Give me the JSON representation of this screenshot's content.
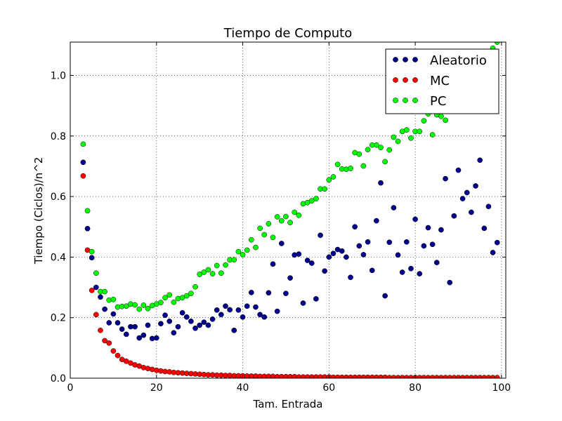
{
  "chart_data": {
    "type": "scatter",
    "title": "Tiempo de Computo",
    "xlabel": "Tam. Entrada",
    "ylabel": "Tiempo (Ciclos)/n^2",
    "xlim": [
      0,
      101
    ],
    "ylim": [
      0,
      1.11
    ],
    "xticks": [
      0,
      20,
      40,
      60,
      80,
      100
    ],
    "xtick_labels": [
      "0",
      "20",
      "40",
      "60",
      "80",
      "100"
    ],
    "yticks": [
      0.0,
      0.2,
      0.4,
      0.6,
      0.8,
      1.0
    ],
    "ytick_labels": [
      "0.0",
      "0.2",
      "0.4",
      "0.6",
      "0.8",
      "1.0"
    ],
    "grid": true,
    "legend_position": "top-right",
    "series": [
      {
        "name": "Aleatorio",
        "color": "#00008b",
        "x": [
          3,
          4,
          5,
          6,
          7,
          8,
          9,
          10,
          11,
          12,
          13,
          14,
          15,
          16,
          17,
          18,
          19,
          20,
          21,
          22,
          23,
          24,
          25,
          26,
          27,
          28,
          29,
          30,
          31,
          32,
          33,
          34,
          35,
          36,
          37,
          38,
          39,
          40,
          41,
          42,
          43,
          44,
          45,
          46,
          47,
          48,
          49,
          50,
          51,
          52,
          53,
          54,
          55,
          56,
          57,
          58,
          59,
          60,
          61,
          62,
          63,
          64,
          65,
          66,
          67,
          68,
          69,
          70,
          71,
          72,
          73,
          74,
          75,
          76,
          77,
          78,
          79,
          80,
          81,
          82,
          83,
          84,
          85,
          86,
          87,
          88,
          89,
          90,
          91,
          92,
          93,
          94,
          95,
          96,
          97,
          98,
          99
        ],
        "y": [
          0.713,
          0.494,
          0.398,
          0.3,
          0.268,
          0.228,
          0.183,
          0.212,
          0.183,
          0.162,
          0.145,
          0.17,
          0.17,
          0.133,
          0.142,
          0.175,
          0.131,
          0.133,
          0.18,
          0.208,
          0.188,
          0.15,
          0.17,
          0.216,
          0.202,
          0.188,
          0.165,
          0.175,
          0.185,
          0.175,
          0.195,
          0.225,
          0.21,
          0.238,
          0.226,
          0.158,
          0.225,
          0.202,
          0.238,
          0.283,
          0.235,
          0.21,
          0.202,
          0.282,
          0.377,
          0.221,
          0.445,
          0.28,
          0.331,
          0.407,
          0.41,
          0.248,
          0.389,
          0.38,
          0.262,
          0.472,
          0.354,
          0.4,
          0.412,
          0.425,
          0.42,
          0.4,
          0.333,
          0.5,
          0.437,
          0.408,
          0.45,
          0.356,
          0.52,
          0.645,
          0.272,
          0.449,
          0.563,
          0.407,
          0.35,
          0.45,
          0.362,
          0.525,
          0.345,
          0.437,
          0.497,
          0.442,
          0.382,
          0.49,
          0.659,
          0.316,
          0.536,
          0.687,
          0.593,
          0.613,
          0.548,
          0.635,
          0.72,
          0.495,
          0.567,
          0.415,
          0.448
        ]
      },
      {
        "name": "MC",
        "color": "#ff0000",
        "x": [
          3,
          4,
          5,
          6,
          7,
          8,
          9,
          10,
          11,
          12,
          13,
          14,
          15,
          16,
          17,
          18,
          19,
          20,
          21,
          22,
          23,
          24,
          25,
          26,
          27,
          28,
          29,
          30,
          31,
          32,
          33,
          34,
          35,
          36,
          37,
          38,
          39,
          40,
          41,
          42,
          43,
          44,
          45,
          46,
          47,
          48,
          49,
          50,
          51,
          52,
          53,
          54,
          55,
          56,
          57,
          58,
          59,
          60,
          61,
          62,
          63,
          64,
          65,
          66,
          67,
          68,
          69,
          70,
          71,
          72,
          73,
          74,
          75,
          76,
          77,
          78,
          79,
          80,
          81,
          82,
          83,
          84,
          85,
          86,
          87,
          88,
          89,
          90,
          91,
          92,
          93,
          94,
          95,
          96,
          97,
          98,
          99
        ],
        "y": [
          0.668,
          0.423,
          0.29,
          0.21,
          0.158,
          0.124,
          0.116,
          0.09,
          0.075,
          0.062,
          0.056,
          0.05,
          0.044,
          0.04,
          0.035,
          0.032,
          0.029,
          0.026,
          0.024,
          0.022,
          0.021,
          0.019,
          0.018,
          0.017,
          0.016,
          0.015,
          0.014,
          0.013,
          0.012,
          0.011,
          0.011,
          0.01,
          0.01,
          0.009,
          0.009,
          0.008,
          0.008,
          0.008,
          0.007,
          0.007,
          0.007,
          0.006,
          0.006,
          0.006,
          0.006,
          0.005,
          0.005,
          0.005,
          0.005,
          0.005,
          0.004,
          0.004,
          0.004,
          0.004,
          0.004,
          0.004,
          0.004,
          0.004,
          0.003,
          0.003,
          0.003,
          0.003,
          0.003,
          0.003,
          0.003,
          0.003,
          0.003,
          0.003,
          0.003,
          0.003,
          0.003,
          0.002,
          0.002,
          0.002,
          0.002,
          0.002,
          0.002,
          0.002,
          0.002,
          0.002,
          0.002,
          0.002,
          0.002,
          0.002,
          0.002,
          0.002,
          0.002,
          0.002,
          0.002,
          0.002,
          0.002,
          0.002,
          0.002,
          0.002,
          0.002,
          0.002,
          0.002
        ]
      },
      {
        "name": "PC",
        "color": "#00ff00",
        "x": [
          3,
          4,
          5,
          6,
          7,
          8,
          9,
          10,
          11,
          12,
          13,
          14,
          15,
          16,
          17,
          18,
          19,
          20,
          21,
          22,
          23,
          24,
          25,
          26,
          27,
          28,
          29,
          30,
          31,
          32,
          33,
          34,
          35,
          36,
          37,
          38,
          39,
          40,
          41,
          42,
          43,
          44,
          45,
          46,
          47,
          48,
          49,
          50,
          51,
          52,
          53,
          54,
          55,
          56,
          57,
          58,
          59,
          60,
          61,
          62,
          63,
          64,
          65,
          66,
          67,
          68,
          69,
          70,
          71,
          72,
          73,
          74,
          75,
          76,
          77,
          78,
          79,
          80,
          81,
          82,
          83,
          84,
          85,
          86,
          87,
          88,
          89,
          90,
          91,
          92,
          93,
          94,
          95,
          96,
          97,
          98,
          99
        ],
        "y": [
          0.773,
          0.553,
          0.418,
          0.347,
          0.286,
          0.286,
          0.258,
          0.26,
          0.235,
          0.237,
          0.238,
          0.245,
          0.242,
          0.228,
          0.241,
          0.23,
          0.24,
          0.245,
          0.25,
          0.266,
          0.275,
          0.251,
          0.263,
          0.266,
          0.272,
          0.28,
          0.302,
          0.343,
          0.35,
          0.358,
          0.345,
          0.372,
          0.347,
          0.374,
          0.391,
          0.391,
          0.418,
          0.408,
          0.423,
          0.457,
          0.432,
          0.495,
          0.474,
          0.51,
          0.465,
          0.533,
          0.52,
          0.534,
          0.514,
          0.548,
          0.538,
          0.576,
          0.58,
          0.586,
          0.593,
          0.625,
          0.625,
          0.655,
          0.665,
          0.706,
          0.691,
          0.69,
          0.693,
          0.745,
          0.74,
          0.701,
          0.755,
          0.77,
          0.77,
          0.762,
          0.715,
          0.754,
          0.796,
          0.782,
          0.815,
          0.82,
          0.793,
          0.815,
          0.815,
          0.85,
          0.873,
          0.804,
          0.87,
          0.865,
          0.852,
          0.93,
          0.92,
          0.955,
          0.97,
          0.985,
          1.0,
          1.015,
          1.03,
          1.05,
          1.07,
          1.09,
          1.11
        ]
      }
    ]
  }
}
